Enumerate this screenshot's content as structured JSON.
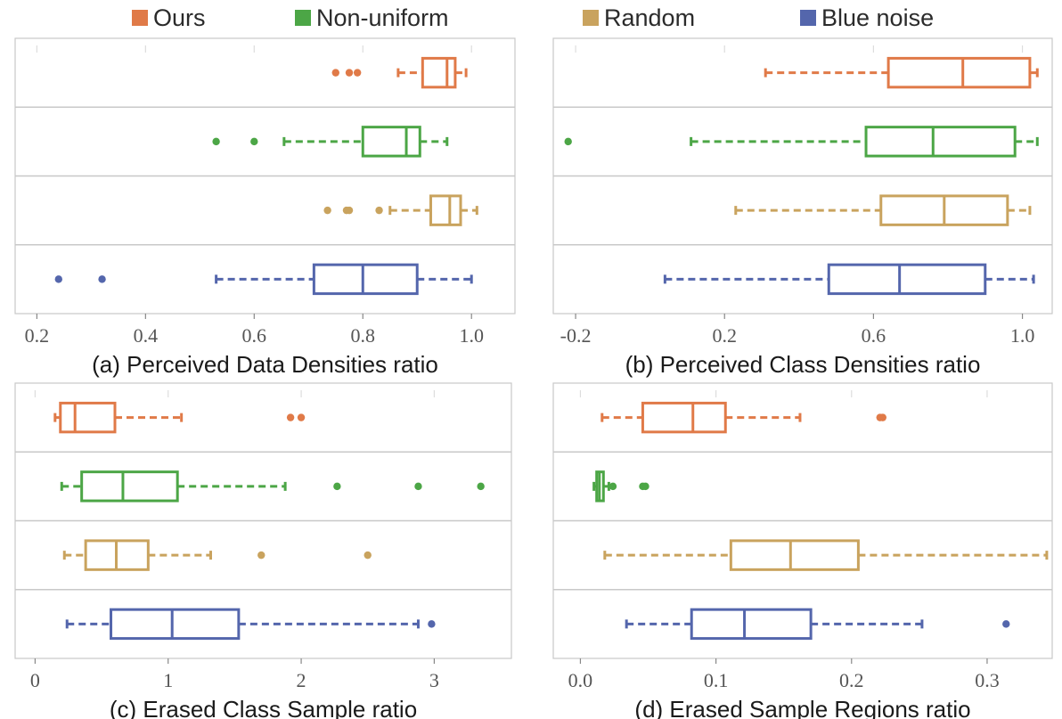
{
  "legend": [
    {
      "name": "Ours",
      "color": "#E07A48"
    },
    {
      "name": "Non-uniform",
      "color": "#4CA646"
    },
    {
      "name": "Random",
      "color": "#C9A35E"
    },
    {
      "name": "Blue noise",
      "color": "#5466AC"
    }
  ],
  "chart_data": [
    {
      "type": "box",
      "title": "(a) Perceived Data Densities ratio",
      "xlim": [
        0.16,
        1.08
      ],
      "xticks": [
        0.2,
        0.4,
        0.6,
        0.8,
        1.0
      ],
      "xtick_labels": [
        "0.2",
        "0.4",
        "0.6",
        "0.8",
        "1.0"
      ],
      "series": [
        {
          "name": "Ours",
          "whisker_low": 0.865,
          "q1": 0.91,
          "median": 0.955,
          "q3": 0.97,
          "whisker_high": 0.99,
          "outliers": [
            0.75,
            0.775,
            0.79
          ]
        },
        {
          "name": "Non-uniform",
          "whisker_low": 0.655,
          "q1": 0.8,
          "median": 0.88,
          "q3": 0.905,
          "whisker_high": 0.955,
          "outliers": [
            0.53,
            0.6
          ]
        },
        {
          "name": "Random",
          "whisker_low": 0.85,
          "q1": 0.925,
          "median": 0.96,
          "q3": 0.98,
          "whisker_high": 1.01,
          "outliers": [
            0.735,
            0.77,
            0.775,
            0.83
          ]
        },
        {
          "name": "Blue noise",
          "whisker_low": 0.53,
          "q1": 0.71,
          "median": 0.8,
          "q3": 0.9,
          "whisker_high": 1.0,
          "outliers": [
            0.24,
            0.32
          ]
        }
      ]
    },
    {
      "type": "box",
      "title": "(b) Perceived Class Densities ratio",
      "xlim": [
        -0.26,
        1.08
      ],
      "xticks": [
        -0.2,
        0.2,
        0.6,
        1.0
      ],
      "xtick_labels": [
        "-0.2",
        "0.2",
        "0.6",
        "1.0"
      ],
      "series": [
        {
          "name": "Ours",
          "whisker_low": 0.31,
          "q1": 0.64,
          "median": 0.84,
          "q3": 1.02,
          "whisker_high": 1.04,
          "outliers": []
        },
        {
          "name": "Non-uniform",
          "whisker_low": 0.11,
          "q1": 0.58,
          "median": 0.76,
          "q3": 0.98,
          "whisker_high": 1.04,
          "outliers": [
            -0.22
          ]
        },
        {
          "name": "Random",
          "whisker_low": 0.23,
          "q1": 0.62,
          "median": 0.79,
          "q3": 0.96,
          "whisker_high": 1.02,
          "outliers": []
        },
        {
          "name": "Blue noise",
          "whisker_low": 0.04,
          "q1": 0.48,
          "median": 0.67,
          "q3": 0.9,
          "whisker_high": 1.03,
          "outliers": []
        }
      ]
    },
    {
      "type": "box",
      "title": "(c) Erased Class Sample ratio",
      "xlim": [
        -0.15,
        3.58
      ],
      "xticks": [
        0,
        1,
        2,
        3
      ],
      "xtick_labels": [
        "0",
        "1",
        "2",
        "3"
      ],
      "series": [
        {
          "name": "Ours",
          "whisker_low": 0.15,
          "q1": 0.19,
          "median": 0.3,
          "q3": 0.6,
          "whisker_high": 1.1,
          "outliers": [
            1.92,
            2.0
          ]
        },
        {
          "name": "Non-uniform",
          "whisker_low": 0.2,
          "q1": 0.35,
          "median": 0.66,
          "q3": 1.07,
          "whisker_high": 1.88,
          "outliers": [
            2.27,
            2.88,
            3.35
          ]
        },
        {
          "name": "Random",
          "whisker_low": 0.22,
          "q1": 0.38,
          "median": 0.61,
          "q3": 0.85,
          "whisker_high": 1.32,
          "outliers": [
            1.7,
            2.5
          ]
        },
        {
          "name": "Blue noise",
          "whisker_low": 0.24,
          "q1": 0.57,
          "median": 1.03,
          "q3": 1.53,
          "whisker_high": 2.88,
          "outliers": [
            2.98
          ]
        }
      ]
    },
    {
      "type": "box",
      "title": "(d) Erased Sample Regions ratio",
      "xlim": [
        -0.02,
        0.348
      ],
      "xticks": [
        0.0,
        0.1,
        0.2,
        0.3
      ],
      "xtick_labels": [
        "0.0",
        "0.1",
        "0.2",
        "0.3"
      ],
      "series": [
        {
          "name": "Ours",
          "whisker_low": 0.016,
          "q1": 0.046,
          "median": 0.083,
          "q3": 0.107,
          "whisker_high": 0.162,
          "outliers": [
            0.221,
            0.223
          ]
        },
        {
          "name": "Non-uniform",
          "whisker_low": 0.01,
          "q1": 0.012,
          "median": 0.014,
          "q3": 0.017,
          "whisker_high": 0.021,
          "outliers": [
            0.024,
            0.046,
            0.048
          ]
        },
        {
          "name": "Random",
          "whisker_low": 0.018,
          "q1": 0.111,
          "median": 0.155,
          "q3": 0.205,
          "whisker_high": 0.344,
          "outliers": []
        },
        {
          "name": "Blue noise",
          "whisker_low": 0.034,
          "q1": 0.082,
          "median": 0.121,
          "q3": 0.17,
          "whisker_high": 0.252,
          "outliers": [
            0.314
          ]
        }
      ]
    }
  ]
}
